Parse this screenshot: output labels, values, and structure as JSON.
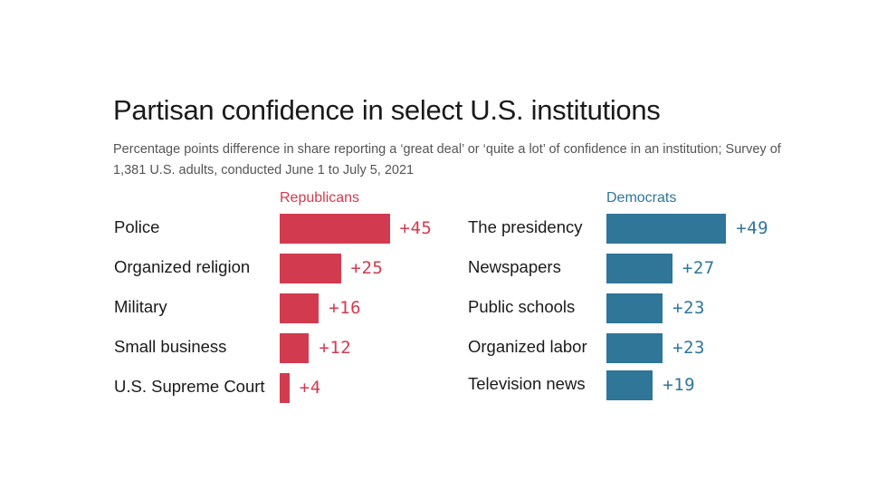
{
  "chart_data": {
    "type": "bar",
    "title": "Partisan confidence in select U.S. institutions",
    "subtitle": "Percentage points difference in share reporting a ‘great deal’ or ‘quite a lot’ of confidence in an institution; Survey of 1,381 U.S. adults, conducted June 1 to July 5, 2021",
    "orientation": "horizontal",
    "panels": [
      {
        "name": "Republicans",
        "color": "#d23b4f",
        "categories": [
          "Police",
          "Organized religion",
          "Military",
          "Small business",
          "U.S. Supreme Court"
        ],
        "values": [
          45,
          25,
          16,
          12,
          4
        ],
        "value_labels": [
          "+45",
          "+25",
          "+16",
          "+12",
          "+4"
        ]
      },
      {
        "name": "Democrats",
        "color": "#2f7699",
        "categories": [
          "The presidency",
          "Newspapers",
          "Public schools",
          "Organized labor",
          "Television news"
        ],
        "values": [
          49,
          27,
          23,
          23,
          19
        ],
        "value_labels": [
          "+49",
          "+27",
          "+23",
          "+23",
          "+19"
        ]
      }
    ]
  }
}
